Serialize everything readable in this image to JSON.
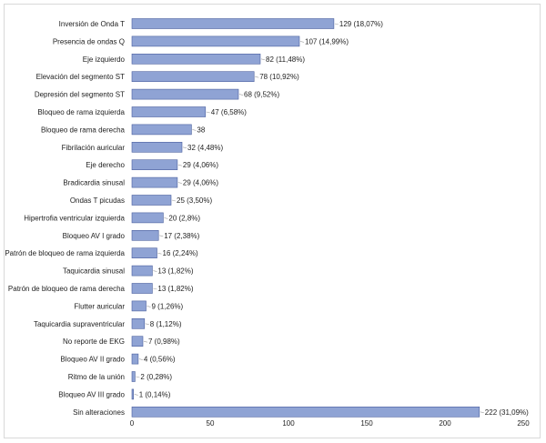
{
  "chart_data": {
    "type": "bar",
    "orientation": "horizontal",
    "categories": [
      "Inversión de Onda T",
      "Presencia de ondas Q",
      "Eje izquierdo",
      "Elevación del segmento ST",
      "Depresión del segmento ST",
      "Bloqueo de rama izquierda",
      "Bloqueo de rama derecha",
      "Fibrilación auricular",
      "Eje derecho",
      "Bradicardia sinusal",
      "Ondas T picudas",
      "Hipertrofia ventricular izquierda",
      "Bloqueo AV I grado",
      "Patrón de bloqueo de rama izquierda",
      "Taquicardia sinusal",
      "Patrón de bloqueo de rama derecha",
      "Flutter auricular",
      "Taquicardia supraventricular",
      "No reporte de EKG",
      "Bloqueo AV II grado",
      "Ritmo de la unión",
      "Bloqueo AV III grado",
      "Sin alteraciones"
    ],
    "values": [
      129,
      107,
      82,
      78,
      68,
      47,
      38,
      32,
      29,
      29,
      25,
      20,
      17,
      16,
      13,
      13,
      9,
      8,
      7,
      4,
      2,
      1,
      222
    ],
    "data_labels": [
      "129 (18,07%)",
      "107 (14,99%)",
      "82 (11,48%)",
      "78 (10,92%)",
      "68 (9,52%)",
      "47 (6,58%)",
      "38",
      "32 (4,48%)",
      "29 (4,06%)",
      "29 (4,06%)",
      "25 (3,50%)",
      "20 (2,8%)",
      "17 (2,38%)",
      "16 (2,24%)",
      "13 (1,82%)",
      "13 (1,82%)",
      "9 (1,26%)",
      "8 (1,12%)",
      "7 (0,98%)",
      "4 (0,56%)",
      "2 (0,28%)",
      "1 (0,14%)",
      "222 (31,09%)"
    ],
    "xlim": [
      0,
      250
    ],
    "xticks": [
      "0",
      "50",
      "100",
      "150",
      "200",
      "250"
    ],
    "xtick_values": [
      0,
      50,
      100,
      150,
      200,
      250
    ],
    "grid": false,
    "legend": "none",
    "title": "",
    "xlabel": "",
    "ylabel": "",
    "colors": {
      "bar_fill": "#8fa3d4",
      "bar_stroke": "#4a5f9e",
      "leader": "#a0a0a0"
    }
  }
}
